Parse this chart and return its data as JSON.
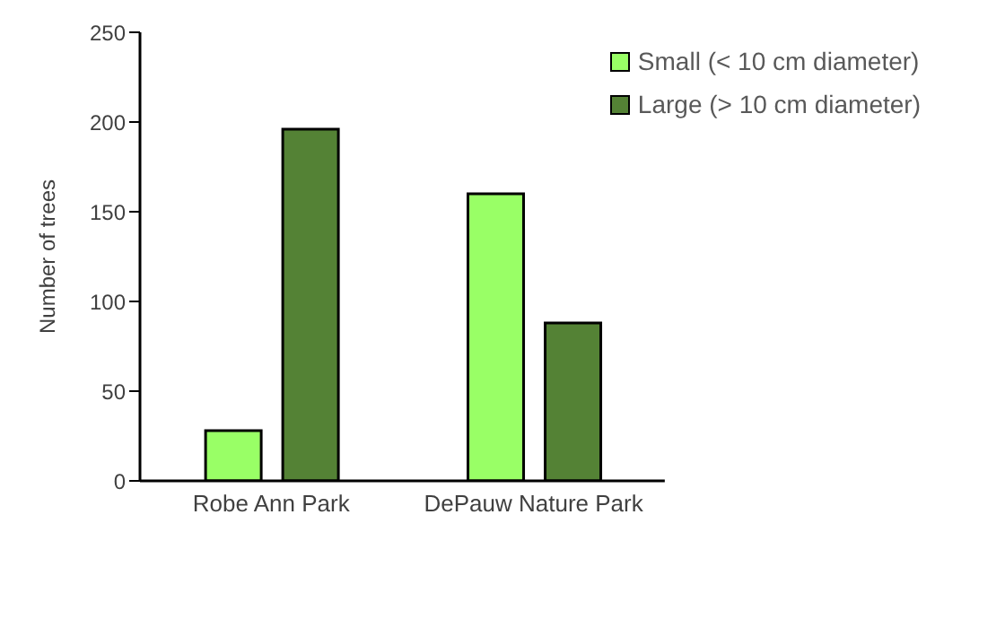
{
  "chart_data": {
    "type": "bar",
    "ylabel": "Number of trees",
    "categories": [
      "Robe Ann Park",
      "DePauw Nature Park"
    ],
    "series": [
      {
        "name": "Small (< 10 cm diameter)",
        "color": "#99ff66",
        "values": [
          28,
          160
        ]
      },
      {
        "name": "Large (> 10 cm diameter)",
        "color": "#548235",
        "values": [
          196,
          88
        ]
      }
    ],
    "ylim": [
      0,
      250
    ],
    "yticks": [
      0,
      50,
      100,
      150,
      200,
      250
    ],
    "grid": false,
    "legend": "top right"
  }
}
